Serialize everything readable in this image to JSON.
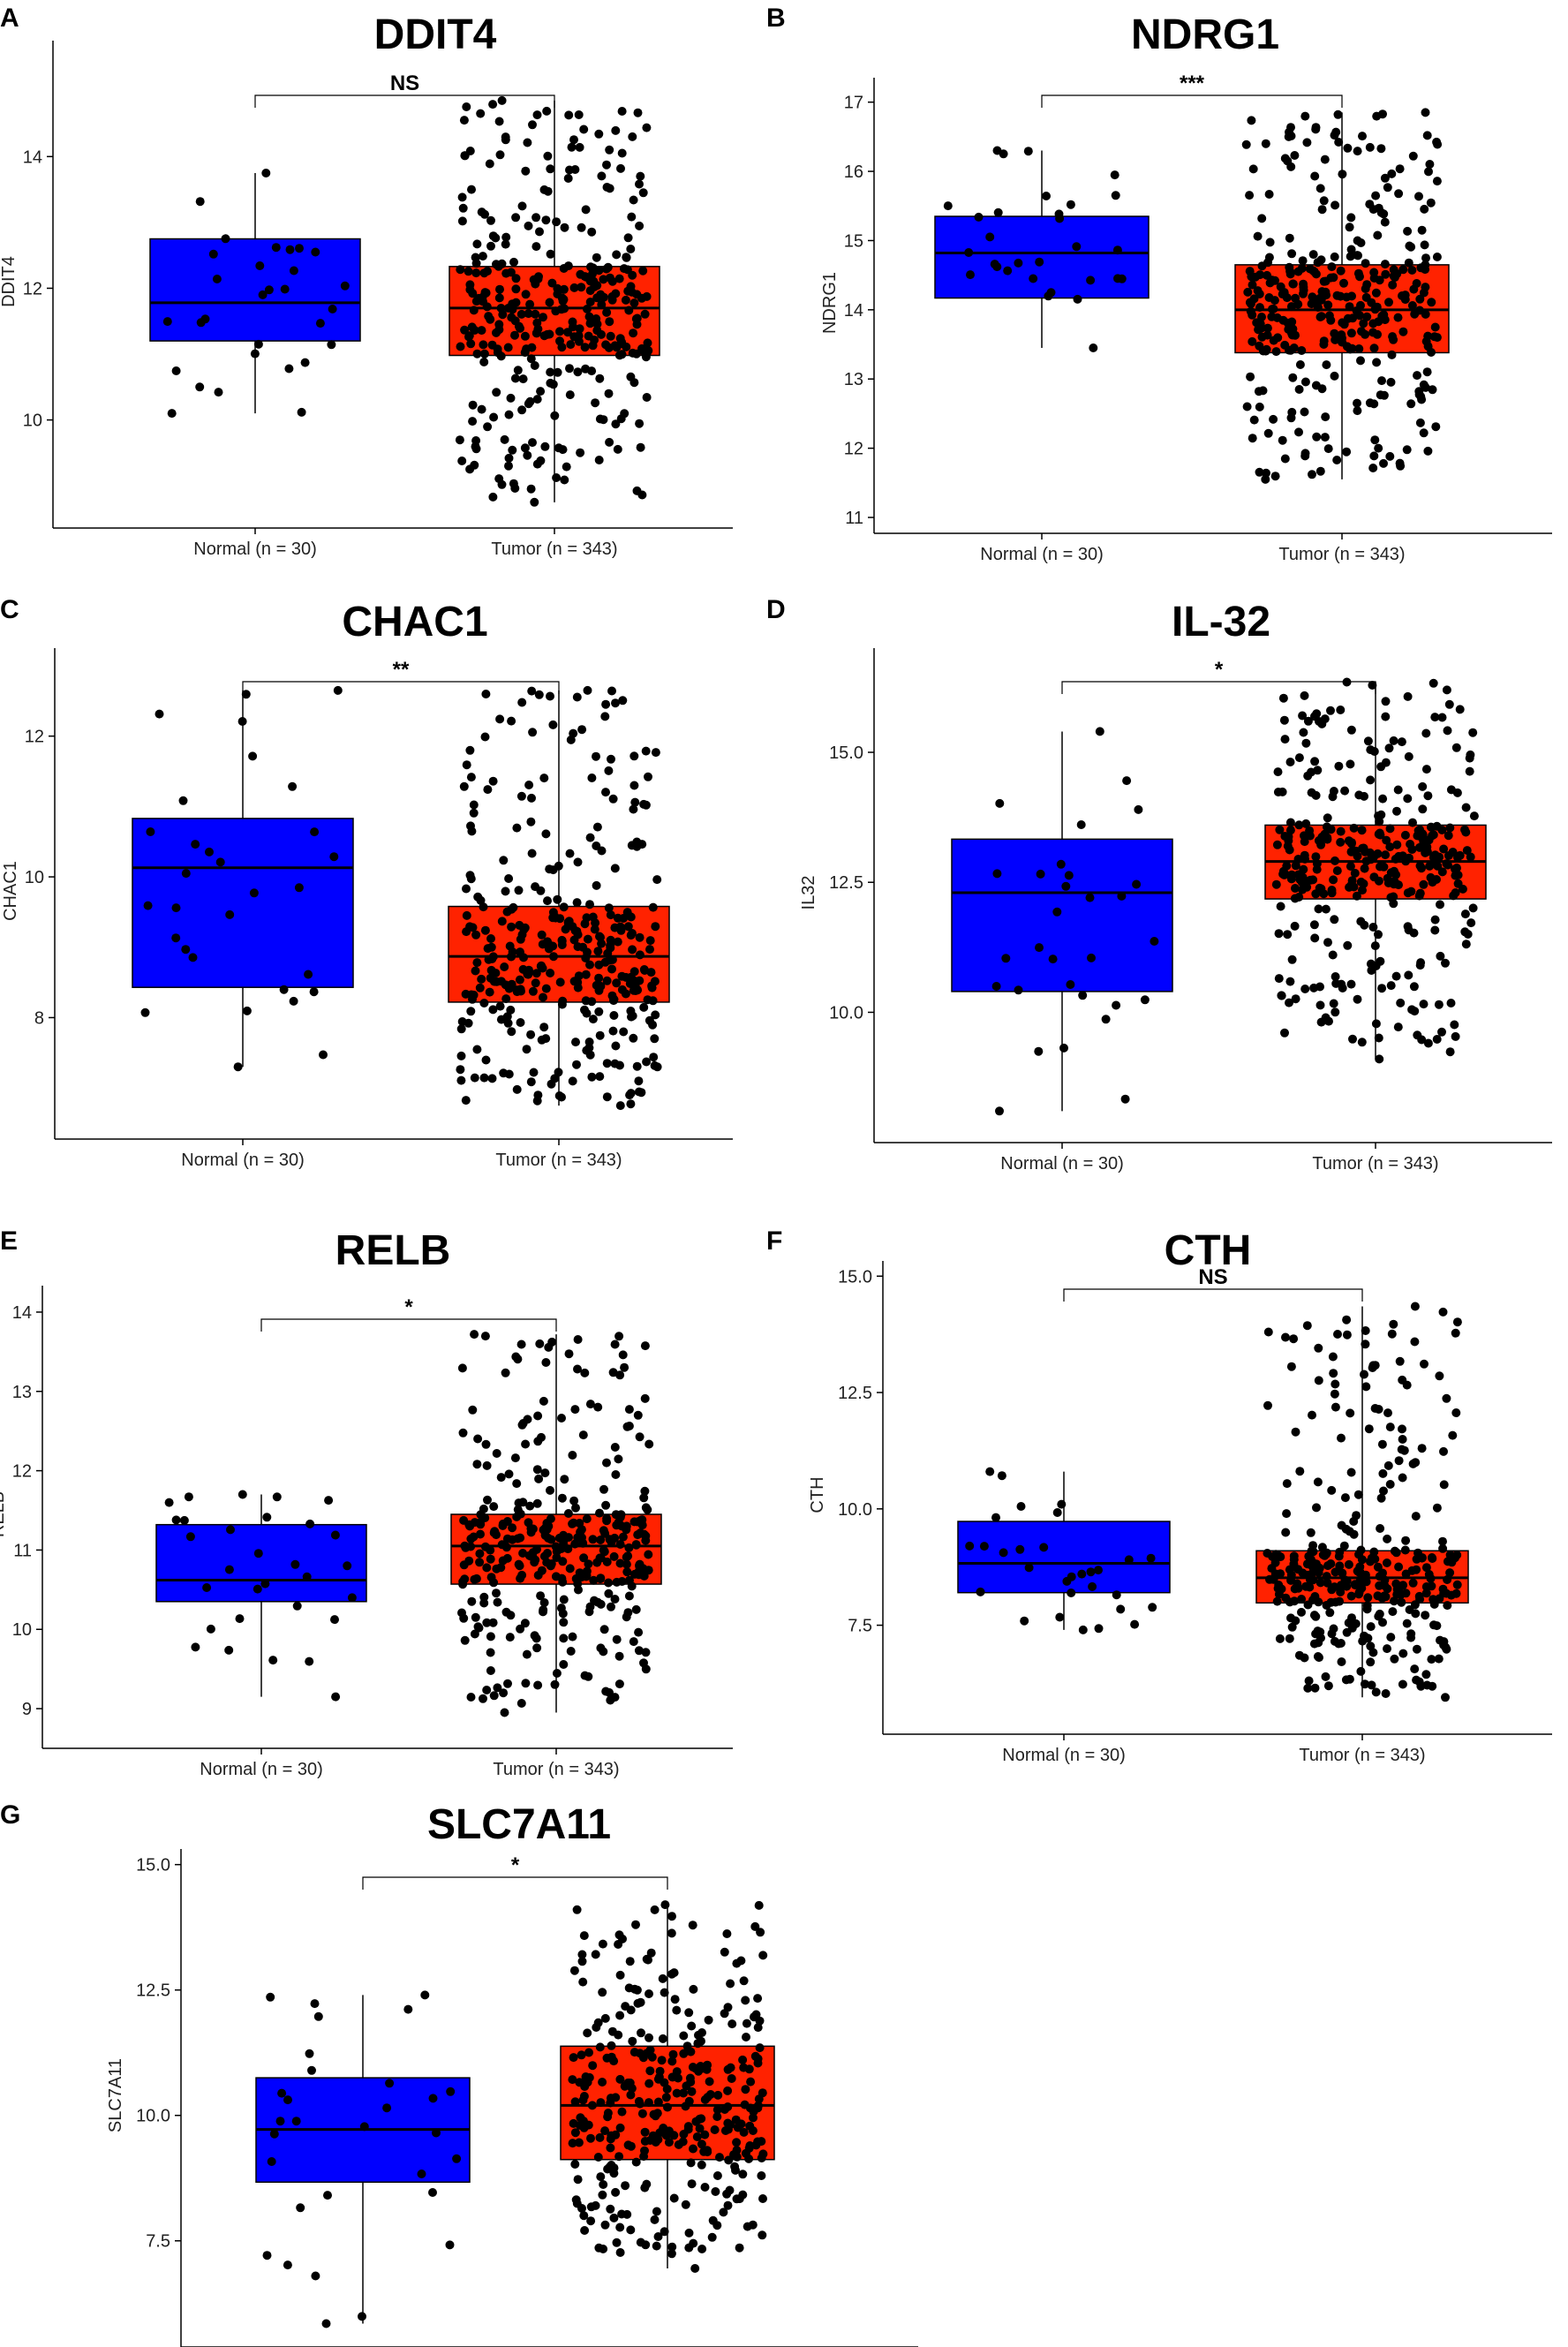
{
  "chart_data": [
    {
      "panel": "A",
      "type": "box",
      "title": "DDIT4",
      "ylabel": "DDIT4",
      "xlabel": "",
      "significance": "NS",
      "ylim": [
        8.6,
        15.6
      ],
      "yticks": [
        10,
        12,
        14
      ],
      "ytick_labels": [
        "10",
        "12",
        "14"
      ],
      "categories": [
        "Normal (n = 30)",
        "Tumor (n = 343)"
      ],
      "boxes": [
        {
          "name": "Normal",
          "color": "#0000ff",
          "whisker_low": 10.1,
          "q1": 11.2,
          "median": 11.78,
          "q3": 12.75,
          "whisker_high": 13.75,
          "n": 30
        },
        {
          "name": "Tumor",
          "color": "#ff2200",
          "whisker_low": 8.75,
          "q1": 10.98,
          "median": 11.7,
          "q3": 12.33,
          "whisker_high": 14.85,
          "n": 343
        }
      ]
    },
    {
      "panel": "B",
      "type": "box",
      "title": "NDRG1",
      "ylabel": "NDRG1",
      "xlabel": "",
      "significance": "***",
      "ylim": [
        11,
        17.2
      ],
      "yticks": [
        11,
        12,
        13,
        14,
        15,
        16,
        17
      ],
      "ytick_labels": [
        "11",
        "12",
        "13",
        "14",
        "15",
        "16",
        "17"
      ],
      "categories": [
        "Normal (n = 30)",
        "Tumor (n = 343)"
      ],
      "boxes": [
        {
          "name": "Normal",
          "color": "#0000ff",
          "whisker_low": 13.45,
          "q1": 14.17,
          "median": 14.82,
          "q3": 15.35,
          "whisker_high": 16.3,
          "n": 30
        },
        {
          "name": "Tumor",
          "color": "#ff2200",
          "whisker_low": 11.55,
          "q1": 13.38,
          "median": 14.0,
          "q3": 14.65,
          "whisker_high": 16.85,
          "n": 343
        }
      ]
    },
    {
      "panel": "C",
      "type": "box",
      "title": "CHAC1",
      "ylabel": "CHAC1",
      "xlabel": "",
      "significance": "**",
      "ylim": [
        6.5,
        13.1
      ],
      "yticks": [
        8,
        10,
        12
      ],
      "ytick_labels": [
        "8",
        "10",
        "12"
      ],
      "categories": [
        "Normal (n = 30)",
        "Tumor (n = 343)"
      ],
      "boxes": [
        {
          "name": "Normal",
          "color": "#0000ff",
          "whisker_low": 7.3,
          "q1": 8.43,
          "median": 10.13,
          "q3": 10.83,
          "whisker_high": 12.65,
          "n": 30
        },
        {
          "name": "Tumor",
          "color": "#ff2200",
          "whisker_low": 6.75,
          "q1": 8.22,
          "median": 8.87,
          "q3": 9.58,
          "whisker_high": 12.65,
          "n": 343
        }
      ]
    },
    {
      "panel": "D",
      "type": "box",
      "title": "IL-32",
      "ylabel": "IL32",
      "xlabel": "",
      "significance": "*",
      "ylim": [
        7.8,
        16.8
      ],
      "yticks": [
        10,
        12.5,
        15
      ],
      "ytick_labels": [
        "10.0",
        "12.5",
        "15.0"
      ],
      "categories": [
        "Normal (n = 30)",
        "Tumor (n = 343)"
      ],
      "boxes": [
        {
          "name": "Normal",
          "color": "#0000ff",
          "whisker_low": 8.1,
          "q1": 10.4,
          "median": 12.3,
          "q3": 13.33,
          "whisker_high": 15.4,
          "n": 30
        },
        {
          "name": "Tumor",
          "color": "#ff2200",
          "whisker_low": 9.1,
          "q1": 12.18,
          "median": 12.9,
          "q3": 13.6,
          "whisker_high": 16.35,
          "n": 343
        }
      ]
    },
    {
      "panel": "E",
      "type": "box",
      "title": "RELB",
      "ylabel": "RELB",
      "xlabel": "",
      "significance": "*",
      "ylim": [
        8.7,
        14.2
      ],
      "yticks": [
        9,
        10,
        11,
        12,
        13,
        14
      ],
      "ytick_labels": [
        "9",
        "10",
        "11",
        "12",
        "13",
        "14"
      ],
      "categories": [
        "Normal (n = 30)",
        "Tumor (n = 343)"
      ],
      "boxes": [
        {
          "name": "Normal",
          "color": "#0000ff",
          "whisker_low": 9.15,
          "q1": 10.35,
          "median": 10.62,
          "q3": 11.32,
          "whisker_high": 11.7,
          "n": 30
        },
        {
          "name": "Tumor",
          "color": "#ff2200",
          "whisker_low": 8.95,
          "q1": 10.57,
          "median": 11.05,
          "q3": 11.45,
          "whisker_high": 13.72,
          "n": 343
        }
      ]
    },
    {
      "panel": "F",
      "type": "box",
      "title": "CTH",
      "ylabel": "CTH",
      "xlabel": "",
      "significance": "NS",
      "ylim": [
        5.5,
        15.1
      ],
      "yticks": [
        7.5,
        10,
        12.5,
        15
      ],
      "ytick_labels": [
        "7.5",
        "10.0",
        "12.5",
        "15.0"
      ],
      "categories": [
        "Normal (n = 30)",
        "Tumor (n = 343)"
      ],
      "boxes": [
        {
          "name": "Normal",
          "color": "#0000ff",
          "whisker_low": 7.4,
          "q1": 8.2,
          "median": 8.83,
          "q3": 9.73,
          "whisker_high": 10.8,
          "n": 30
        },
        {
          "name": "Tumor",
          "color": "#ff2200",
          "whisker_low": 5.95,
          "q1": 7.98,
          "median": 8.52,
          "q3": 9.1,
          "whisker_high": 14.35,
          "n": 343
        }
      ]
    },
    {
      "panel": "G",
      "type": "box",
      "title": "SLC7A11",
      "ylabel": "SLC7A11",
      "xlabel": "",
      "significance": "*",
      "ylim": [
        5.7,
        15.1
      ],
      "yticks": [
        7.5,
        10,
        12.5,
        15
      ],
      "ytick_labels": [
        "7.5",
        "10.0",
        "12.5",
        "15.0"
      ],
      "categories": [
        "Normal (n = 30)",
        "Tumor (n = 343)"
      ],
      "boxes": [
        {
          "name": "Normal",
          "color": "#0000ff",
          "whisker_low": 5.85,
          "q1": 8.67,
          "median": 9.72,
          "q3": 10.75,
          "whisker_high": 12.4,
          "n": 30
        },
        {
          "name": "Tumor",
          "color": "#ff2200",
          "whisker_low": 6.95,
          "q1": 9.12,
          "median": 10.2,
          "q3": 11.38,
          "whisker_high": 14.2,
          "n": 343
        }
      ]
    }
  ]
}
